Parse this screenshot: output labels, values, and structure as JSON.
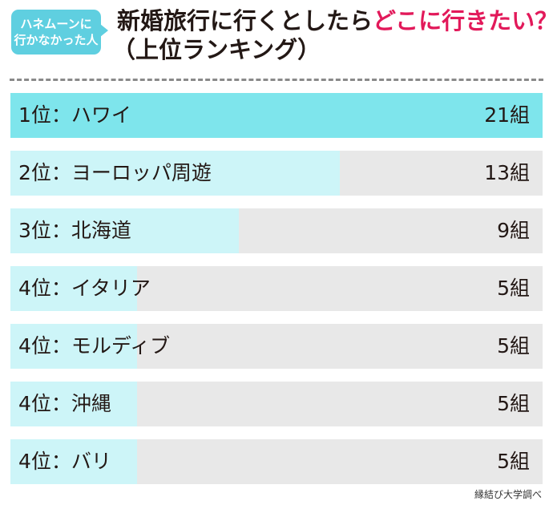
{
  "badge": {
    "line1": "ハネムーンに",
    "line2": "行かなかった人",
    "color": "#5fcfe0"
  },
  "title": {
    "part1": "新婚旅行に行くとしたら",
    "accent": "どこに行きたい？",
    "line2": "（上位ランキング）",
    "accent_color": "#e2195a"
  },
  "chart_data": {
    "type": "bar",
    "orientation": "horizontal",
    "unit": "組",
    "xlim": [
      0,
      21
    ],
    "categories": [
      "1位：ハワイ",
      "2位：ヨーロッパ周遊",
      "3位：北海道",
      "4位：イタリア",
      "4位：モルディブ",
      "4位：沖縄",
      "4位：バリ"
    ],
    "values": [
      21,
      13,
      9,
      5,
      5,
      5,
      5
    ],
    "value_labels": [
      "21組",
      "13組",
      "9組",
      "5組",
      "5組",
      "5組",
      "5組"
    ],
    "colors": {
      "top": "#7ee5ec",
      "fill": "#cdf5f8",
      "track": "#e8e8e8"
    }
  },
  "source": "縁結び大学調べ"
}
